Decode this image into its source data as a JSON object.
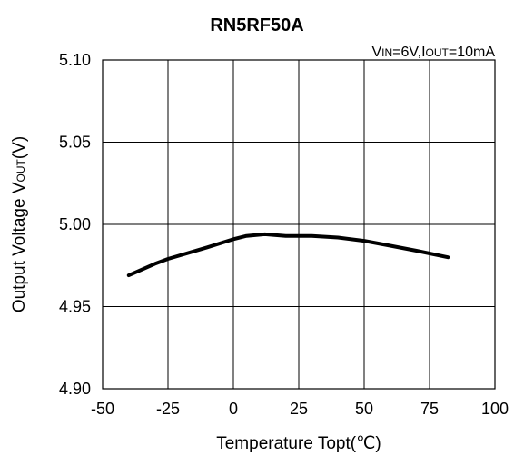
{
  "chart_data": {
    "type": "line",
    "title": "RN5RF50A",
    "condition": {
      "vin_prefix": "V",
      "vin_sub": "IN",
      "vin_value": "=6V,",
      "iout_prefix": "I",
      "iout_sub": "OUT",
      "iout_value": "=10mA"
    },
    "xlabel": "Temperature Topt(℃)",
    "ylabel": {
      "text": "Output Voltage V",
      "sub": "OUT",
      "unit": "(V)"
    },
    "xlim": [
      -50,
      100
    ],
    "ylim": [
      4.9,
      5.1
    ],
    "xticks": [
      -50,
      -25,
      0,
      25,
      50,
      75,
      100
    ],
    "xtick_labels": [
      "-50",
      "-25",
      "0",
      "25",
      "50",
      "75",
      "100"
    ],
    "yticks": [
      4.9,
      4.95,
      5.0,
      5.05,
      5.1
    ],
    "ytick_labels": [
      "4.90",
      "4.95",
      "5.00",
      "5.05",
      "5.10"
    ],
    "grid": true,
    "series": [
      {
        "color": "#000000",
        "x": [
          -40,
          -30,
          -25,
          -10,
          0,
          5,
          12,
          20,
          25,
          30,
          40,
          50,
          60,
          70,
          82
        ],
        "y": [
          4.969,
          4.976,
          4.979,
          4.986,
          4.991,
          4.993,
          4.994,
          4.993,
          4.993,
          4.993,
          4.992,
          4.99,
          4.987,
          4.984,
          4.98
        ]
      }
    ]
  }
}
